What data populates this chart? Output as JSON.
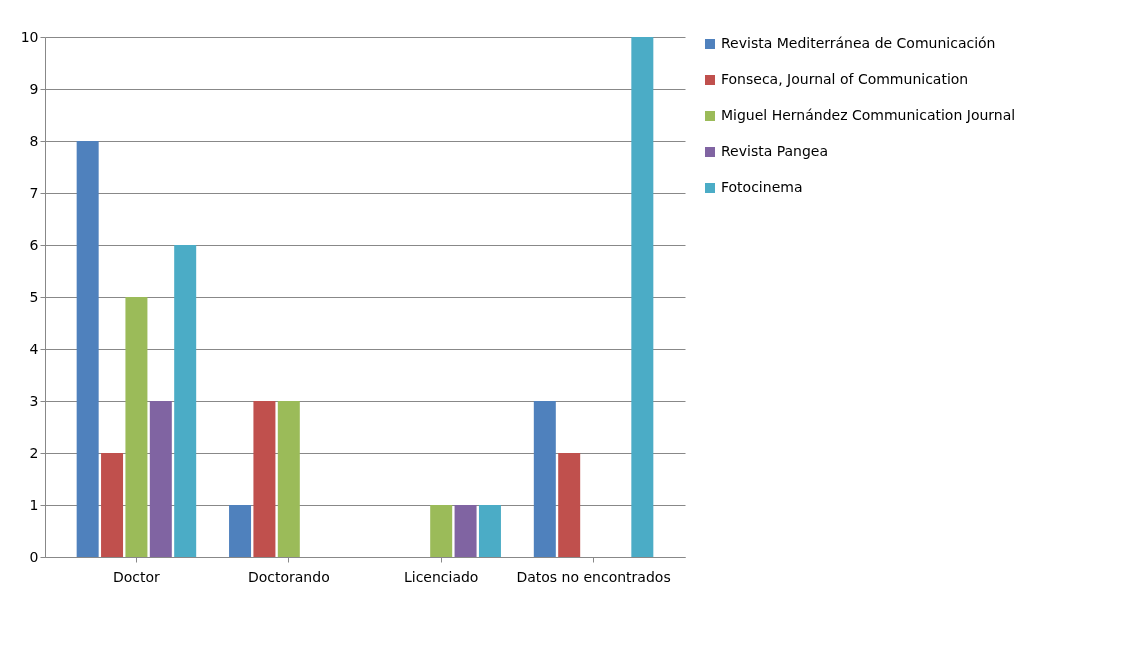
{
  "chart_data": {
    "type": "bar",
    "categories": [
      "Doctor",
      "Doctorando",
      "Licenciado",
      "Datos no encontrados"
    ],
    "series": [
      {
        "name": "Revista Mediterránea de Comunicación",
        "color": "#4f81bd",
        "values": [
          8,
          1,
          null,
          3
        ]
      },
      {
        "name": "Fonseca, Journal of Communication",
        "color": "#c0504d",
        "values": [
          2,
          3,
          null,
          2
        ]
      },
      {
        "name": "Miguel Hernández Communication Journal",
        "color": "#9bbb59",
        "values": [
          5,
          3,
          1,
          null
        ]
      },
      {
        "name": "Revista Pangea",
        "color": "#8064a2",
        "values": [
          3,
          null,
          1,
          null
        ]
      },
      {
        "name": "Fotocinema",
        "color": "#4bacc6",
        "values": [
          6,
          null,
          1,
          10
        ]
      }
    ],
    "ylim": [
      0,
      10
    ],
    "yticks": [
      0,
      1,
      2,
      3,
      4,
      5,
      6,
      7,
      8,
      9,
      10
    ],
    "grid": "y",
    "legend": "right"
  }
}
